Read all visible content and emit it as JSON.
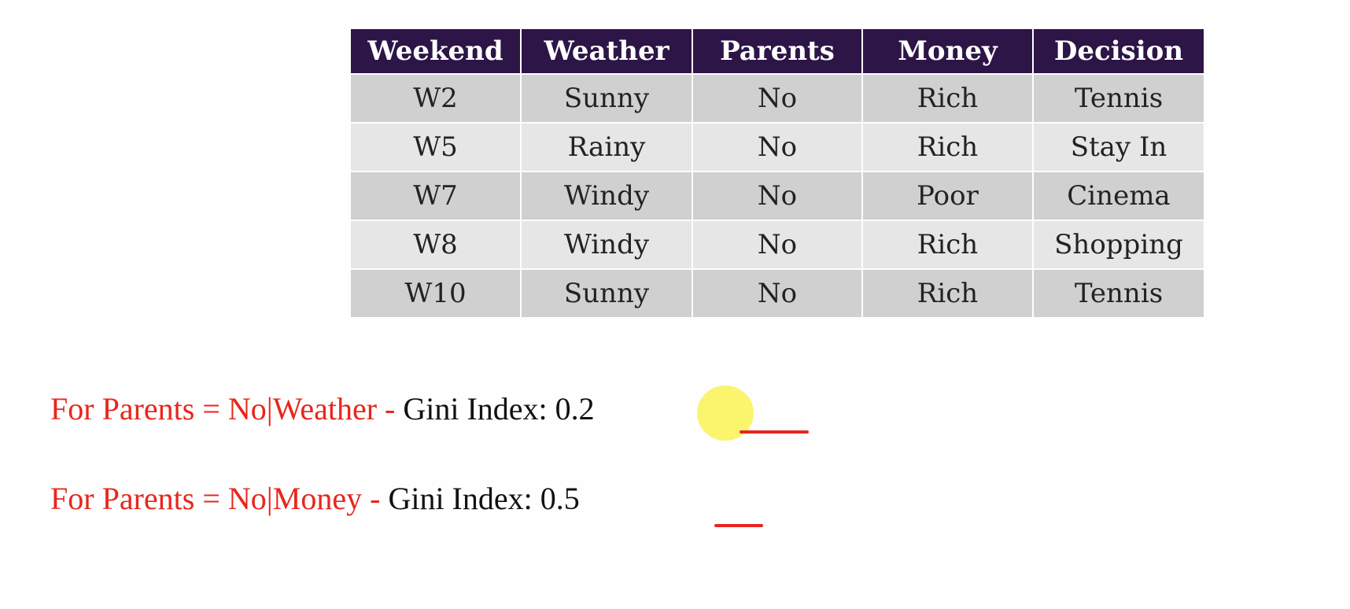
{
  "table": {
    "headers": [
      "Weekend",
      "Weather",
      "Parents",
      "Money",
      "Decision"
    ],
    "rows": [
      [
        "W2",
        "Sunny",
        "No",
        "Rich",
        "Tennis"
      ],
      [
        "W5",
        "Rainy",
        "No",
        "Rich",
        "Stay In"
      ],
      [
        "W7",
        "Windy",
        "No",
        "Poor",
        "Cinema"
      ],
      [
        "W8",
        "Windy",
        "No",
        "Rich",
        "Shopping"
      ],
      [
        "W10",
        "Sunny",
        "No",
        "Rich",
        "Tennis"
      ]
    ],
    "header_color": "#2d1547"
  },
  "results": [
    {
      "condition": "For Parents = No",
      "separator": "|",
      "attribute": "Weather",
      "dash": " - ",
      "label": "Gini Index: ",
      "value": "0.2"
    },
    {
      "condition": "For Parents = No",
      "separator": "|",
      "attribute": "Money",
      "dash": " - ",
      "label": "Gini Index: ",
      "value": "0.5"
    }
  ],
  "colors": {
    "accent_red": "#e8261c",
    "highlight": "#f5eb3c"
  }
}
